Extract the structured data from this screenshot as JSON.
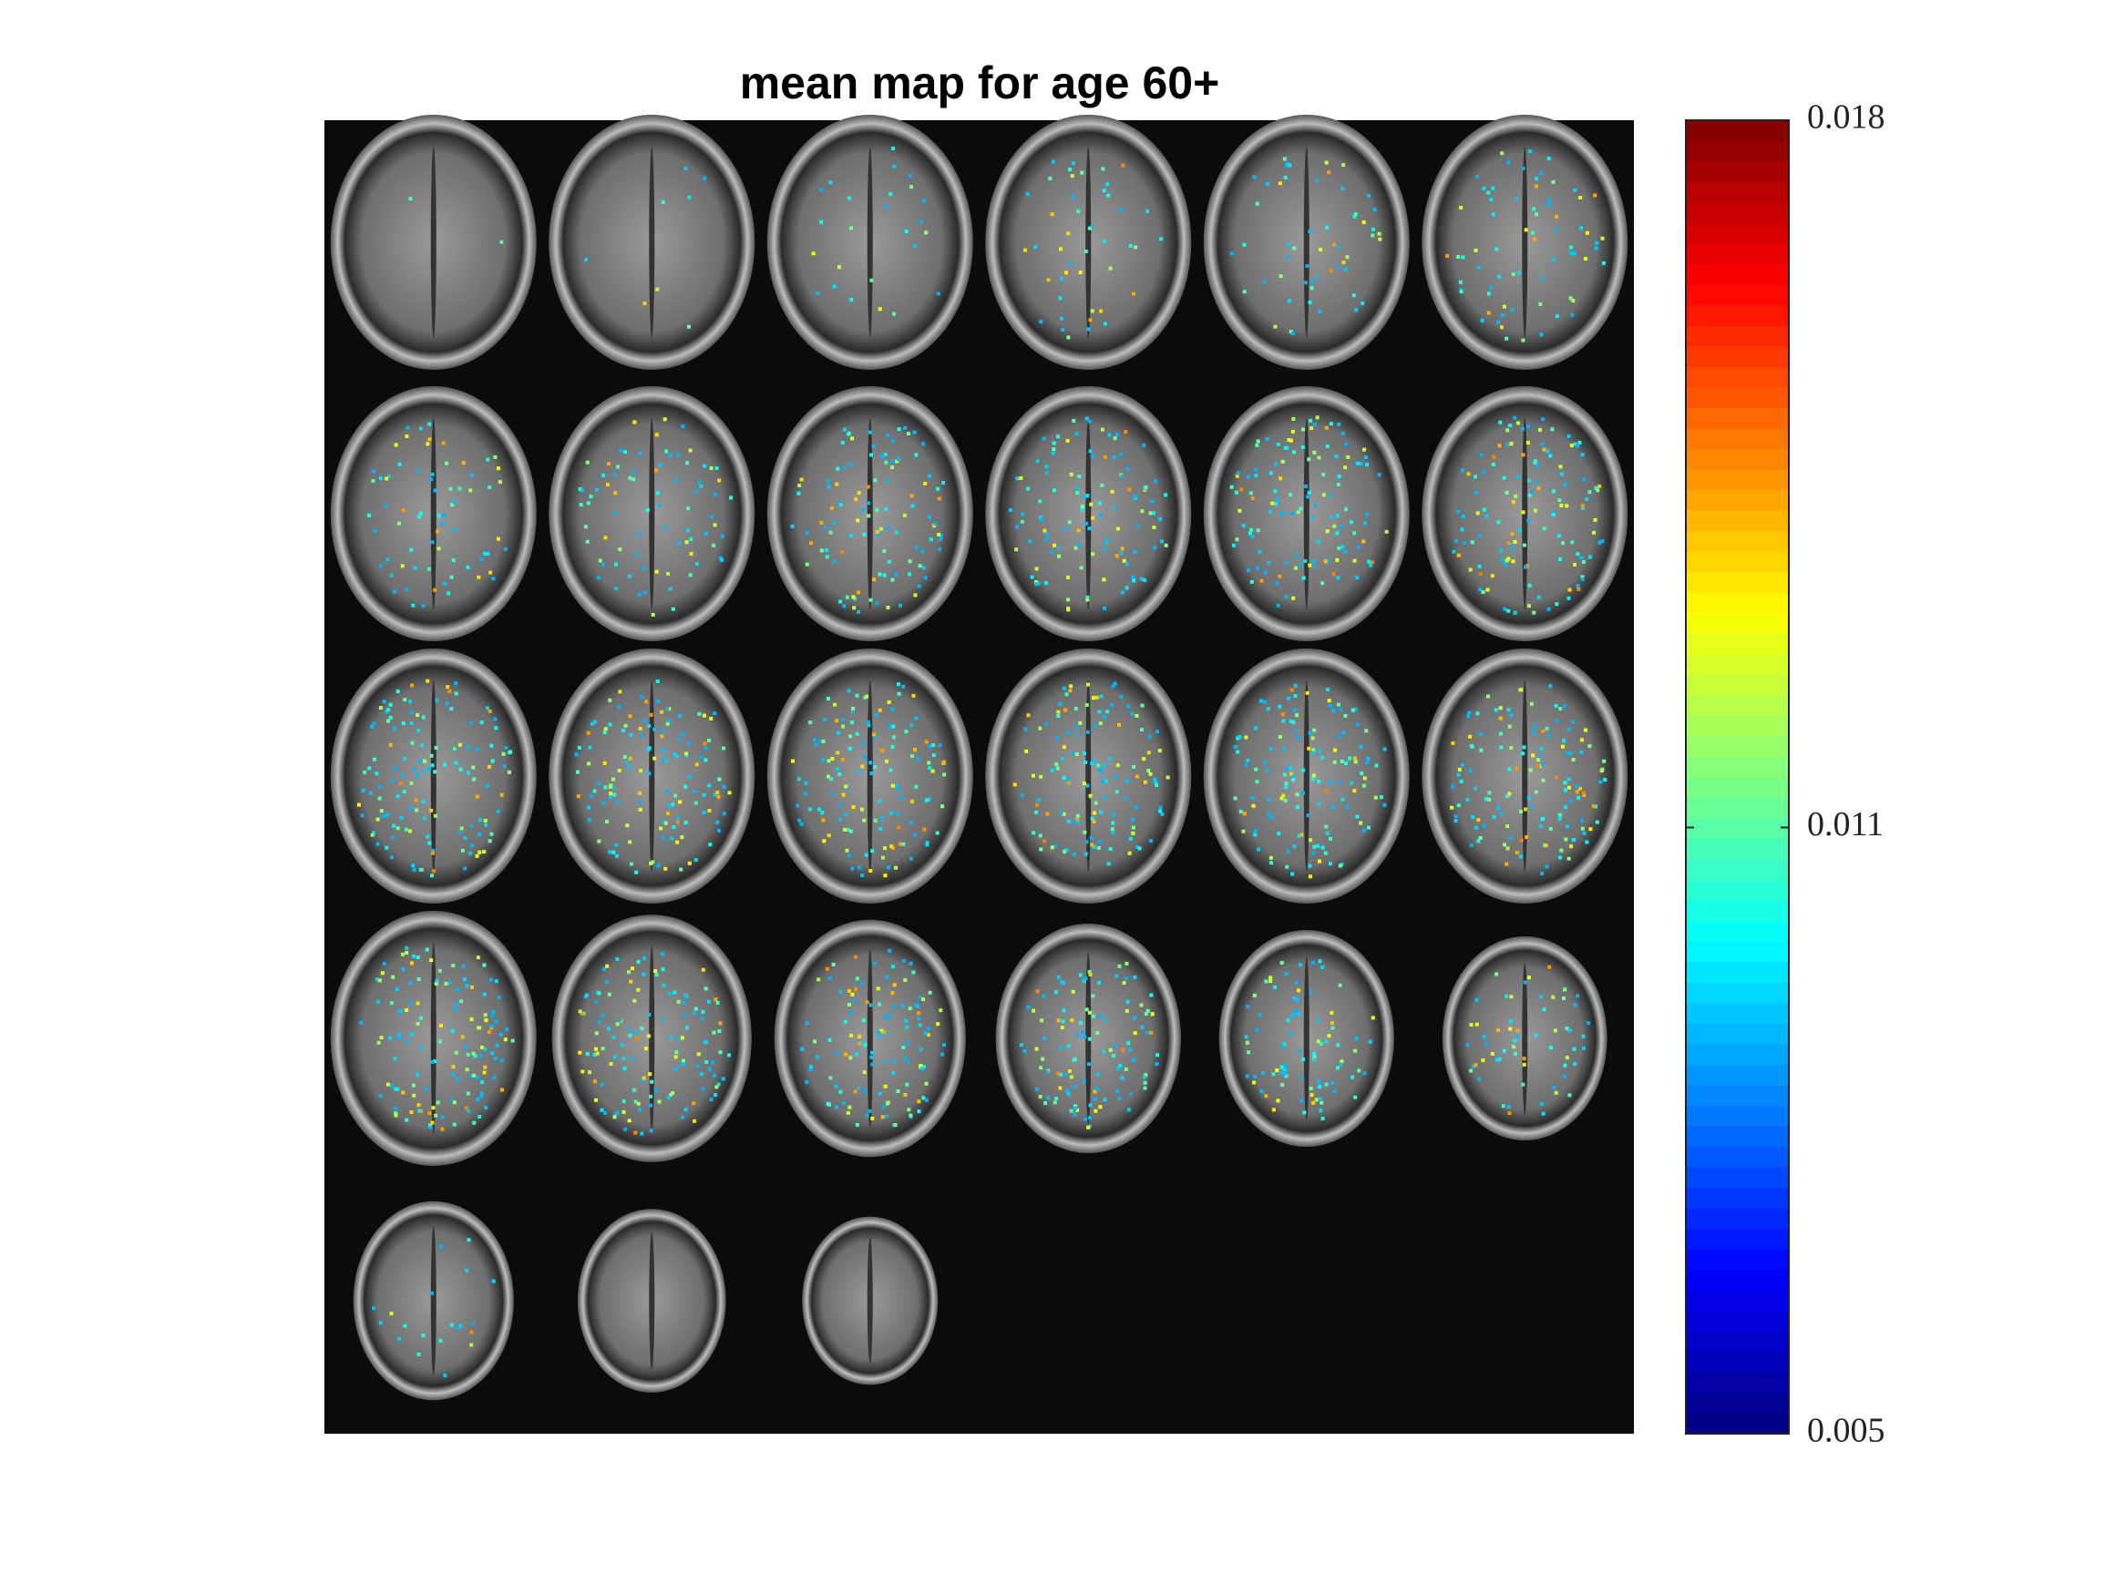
{
  "chart_data": {
    "type": "heatmap",
    "title": "mean map for age 60+",
    "colormap": "jet",
    "clim": [
      0.005,
      0.018
    ],
    "cticks": [
      0.005,
      0.011,
      0.018
    ]
  }
}
